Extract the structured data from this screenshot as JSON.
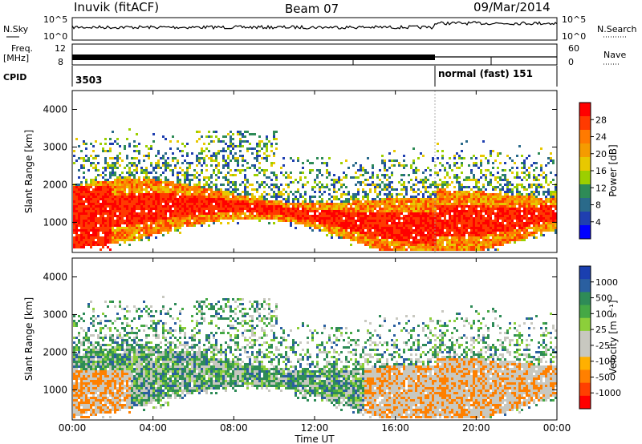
{
  "header": {
    "station": "Inuvik (fitACF)",
    "beam": "Beam 07",
    "date": "09/Mar/2014"
  },
  "time_axis": {
    "label": "Time UT",
    "ticks": [
      "00:00",
      "04:00",
      "08:00",
      "12:00",
      "16:00",
      "20:00",
      "00:00"
    ]
  },
  "noise_panel": {
    "left_label": "N.Sky",
    "right_label": "N.Search",
    "left_ticks": [
      "10^5",
      "10^0"
    ],
    "right_ticks": [
      "10^5",
      "10^0"
    ]
  },
  "freq_panel": {
    "left_label_1": "Freq.",
    "left_label_2": "[MHz]",
    "left_ticks": [
      "12",
      "8"
    ],
    "right_label": "Nave",
    "right_ticks": [
      "60",
      "0"
    ]
  },
  "cpid_panel": {
    "label": "CPID",
    "segments": [
      {
        "start_hour": 0,
        "end_hour": 18,
        "text": "3503"
      },
      {
        "start_hour": 18,
        "end_hour": 24,
        "text": "normal (fast) 151"
      }
    ]
  },
  "power_colorbar": {
    "label": "Power [dB]",
    "ticks": [
      "28",
      "24",
      "20",
      "16",
      "12",
      "8",
      "4"
    ],
    "colors": [
      "#ff0000",
      "#ff3a00",
      "#ff7a00",
      "#f59b00",
      "#e8c800",
      "#9ccf00",
      "#2e8b57",
      "#2a6a8a",
      "#1f3fb0",
      "#0000ff"
    ]
  },
  "velocity_colorbar": {
    "label": "Velocity [m s⁻¹]",
    "ticks": [
      "1000",
      "500",
      "100",
      "25",
      "-25",
      "-100",
      "-500",
      "-1000"
    ],
    "colors": [
      "#1a3fb0",
      "#2a5fa0",
      "#2e8b57",
      "#45a845",
      "#8ccf3a",
      "#c8c8c0",
      "#c8c8c0",
      "#ffb000",
      "#ff8000",
      "#ff4000",
      "#ff0000"
    ]
  },
  "chart_data": [
    {
      "type": "heatmap",
      "name": "power",
      "ylabel": "Slant Range [km]",
      "xlabel": "Time UT",
      "xlim": [
        0,
        24
      ],
      "ylim": [
        200,
        4500
      ],
      "yticks": [
        "1000",
        "2000",
        "3000",
        "4000"
      ],
      "colorbar_label": "Power [dB]",
      "colorbar_range": [
        0,
        30
      ]
    },
    {
      "type": "heatmap",
      "name": "velocity",
      "ylabel": "Slant Range [km]",
      "xlabel": "Time UT",
      "xlim": [
        0,
        24
      ],
      "ylim": [
        200,
        4500
      ],
      "yticks": [
        "1000",
        "2000",
        "3000",
        "4000"
      ],
      "colorbar_label": "Velocity [m s⁻¹]",
      "colorbar_range": [
        -1000,
        1000
      ]
    }
  ]
}
